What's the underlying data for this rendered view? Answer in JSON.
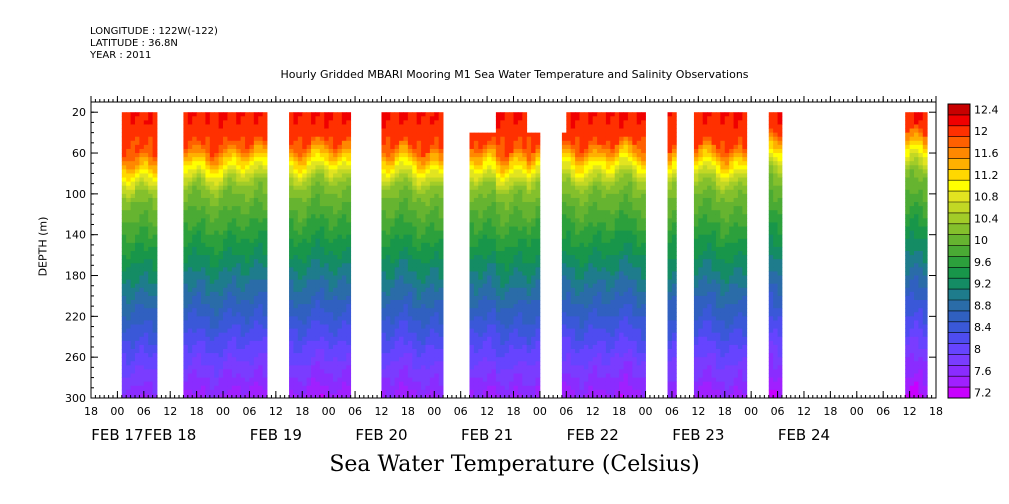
{
  "header": {
    "longitude": "LONGITUDE : 122W(-122)",
    "latitude": "LATITUDE : 36.8N",
    "year": "YEAR : 2011"
  },
  "chart_data": {
    "type": "heatmap",
    "title": "Hourly Gridded MBARI Mooring M1 Sea Water Temperature and Salinity Observations",
    "caption": "Sea Water Temperature (Celsius)",
    "ylabel": "DEPTH (m)",
    "x_range_hours": [
      -6,
      186
    ],
    "x_origin": "FEB 17 00",
    "y_range": [
      300,
      10
    ],
    "y_reversed": true,
    "y_ticks": [
      20,
      60,
      100,
      140,
      180,
      220,
      260,
      300
    ],
    "x_hour_ticks": [
      {
        "h": -6,
        "label": "18"
      },
      {
        "h": 0,
        "label": "00"
      },
      {
        "h": 6,
        "label": "06"
      },
      {
        "h": 12,
        "label": "12"
      },
      {
        "h": 18,
        "label": "18"
      },
      {
        "h": 24,
        "label": "00"
      },
      {
        "h": 30,
        "label": "06"
      },
      {
        "h": 36,
        "label": "12"
      },
      {
        "h": 42,
        "label": "18"
      },
      {
        "h": 48,
        "label": "00"
      },
      {
        "h": 54,
        "label": "06"
      },
      {
        "h": 60,
        "label": "12"
      },
      {
        "h": 66,
        "label": "18"
      },
      {
        "h": 72,
        "label": "00"
      },
      {
        "h": 78,
        "label": "06"
      },
      {
        "h": 84,
        "label": "12"
      },
      {
        "h": 90,
        "label": "18"
      },
      {
        "h": 96,
        "label": "00"
      },
      {
        "h": 102,
        "label": "06"
      },
      {
        "h": 108,
        "label": "12"
      },
      {
        "h": 114,
        "label": "18"
      },
      {
        "h": 120,
        "label": "00"
      },
      {
        "h": 126,
        "label": "06"
      },
      {
        "h": 132,
        "label": "12"
      },
      {
        "h": 138,
        "label": "18"
      },
      {
        "h": 144,
        "label": "00"
      },
      {
        "h": 150,
        "label": "06"
      },
      {
        "h": 156,
        "label": "12"
      },
      {
        "h": 162,
        "label": "18"
      },
      {
        "h": 168,
        "label": "00"
      },
      {
        "h": 174,
        "label": "06"
      },
      {
        "h": 180,
        "label": "12"
      },
      {
        "h": 186,
        "label": "18"
      }
    ],
    "date_labels": [
      {
        "h": 0,
        "label": "FEB 17"
      },
      {
        "h": 12,
        "label": "FEB 18"
      },
      {
        "h": 36,
        "label": "FEB 19"
      },
      {
        "h": 60,
        "label": "FEB 20"
      },
      {
        "h": 84,
        "label": "FEB 21"
      },
      {
        "h": 108,
        "label": "FEB 22"
      },
      {
        "h": 132,
        "label": "FEB 23"
      },
      {
        "h": 156,
        "label": "FEB 24"
      }
    ],
    "segments": [
      {
        "start": 1,
        "end": 9,
        "top": 20,
        "thermocline": 88
      },
      {
        "start": 15,
        "end": 34,
        "top": 20,
        "thermocline": 82
      },
      {
        "start": 39,
        "end": 53,
        "top": 20,
        "thermocline": 80
      },
      {
        "start": 60,
        "end": 74,
        "top": 20,
        "thermocline": 84
      },
      {
        "start": 80,
        "end": 86,
        "top": 40,
        "thermocline": 84
      },
      {
        "start": 86,
        "end": 93,
        "top": 20,
        "thermocline": 84
      },
      {
        "start": 93,
        "end": 96,
        "top": 40,
        "thermocline": 84
      },
      {
        "start": 101,
        "end": 102,
        "top": 40,
        "thermocline": 80
      },
      {
        "start": 102,
        "end": 120,
        "top": 20,
        "thermocline": 80
      },
      {
        "start": 125,
        "end": 127,
        "top": 20,
        "thermocline": 78
      },
      {
        "start": 131,
        "end": 143,
        "top": 20,
        "thermocline": 82
      },
      {
        "start": 148,
        "end": 151,
        "top": 20,
        "thermocline": 70
      },
      {
        "start": 179,
        "end": 184,
        "top": 20,
        "thermocline": 70
      }
    ],
    "colorbar": {
      "levels": [
        7.2,
        7.4,
        7.6,
        7.8,
        8.0,
        8.2,
        8.4,
        8.6,
        8.8,
        9.0,
        9.2,
        9.4,
        9.6,
        9.8,
        10.0,
        10.2,
        10.4,
        10.6,
        10.8,
        11.0,
        11.2,
        11.4,
        11.6,
        11.8,
        12.0,
        12.2,
        12.4,
        12.6
      ],
      "labels": [
        "12.4",
        "12",
        "11.6",
        "11.2",
        "10.8",
        "10.4",
        "10",
        "9.6",
        "9.2",
        "8.8",
        "8.4",
        "8",
        "7.6",
        "7.2"
      ],
      "colors": [
        "#c800ff",
        "#a020ff",
        "#8a2cff",
        "#7a3cff",
        "#6644ff",
        "#4e4cf0",
        "#3a58d8",
        "#3060c0",
        "#2a6ca8",
        "#1e7c8c",
        "#148c64",
        "#18964a",
        "#2ca03c",
        "#4aaa34",
        "#66b430",
        "#84c02c",
        "#a2cc28",
        "#c2d824",
        "#e2e420",
        "#ffff00",
        "#ffd800",
        "#ffb000",
        "#ff8800",
        "#ff6000",
        "#ff3000",
        "#f00000",
        "#c80000"
      ]
    }
  }
}
